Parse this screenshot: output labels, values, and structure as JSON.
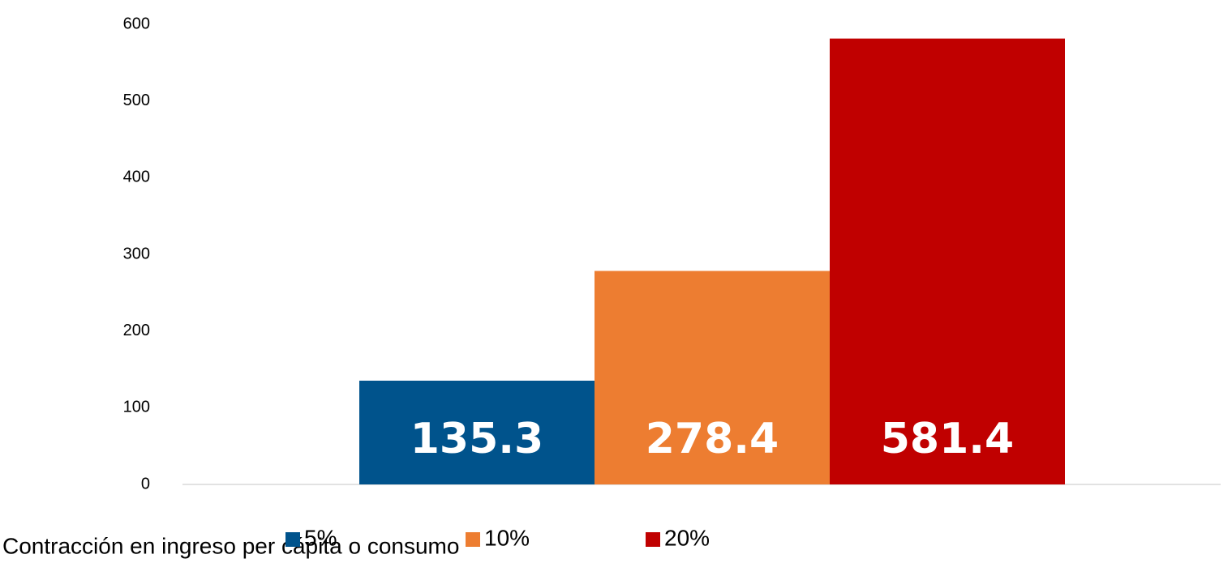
{
  "chart_data": {
    "type": "bar",
    "categories": [
      null
    ],
    "series": [
      {
        "name": "5%",
        "color": "#00538c",
        "values": [
          135.3
        ]
      },
      {
        "name": "10%",
        "color": "#ed7d31",
        "values": [
          278.4
        ]
      },
      {
        "name": "20%",
        "color": "#c00000",
        "values": [
          581.4
        ]
      }
    ],
    "legend_title": "Contracción en ingreso per cápita o consumo",
    "legend": "bottom",
    "ylim": [
      0,
      600
    ],
    "yticks": [
      0,
      100,
      200,
      300,
      400,
      500,
      600
    ],
    "grid": false
  }
}
